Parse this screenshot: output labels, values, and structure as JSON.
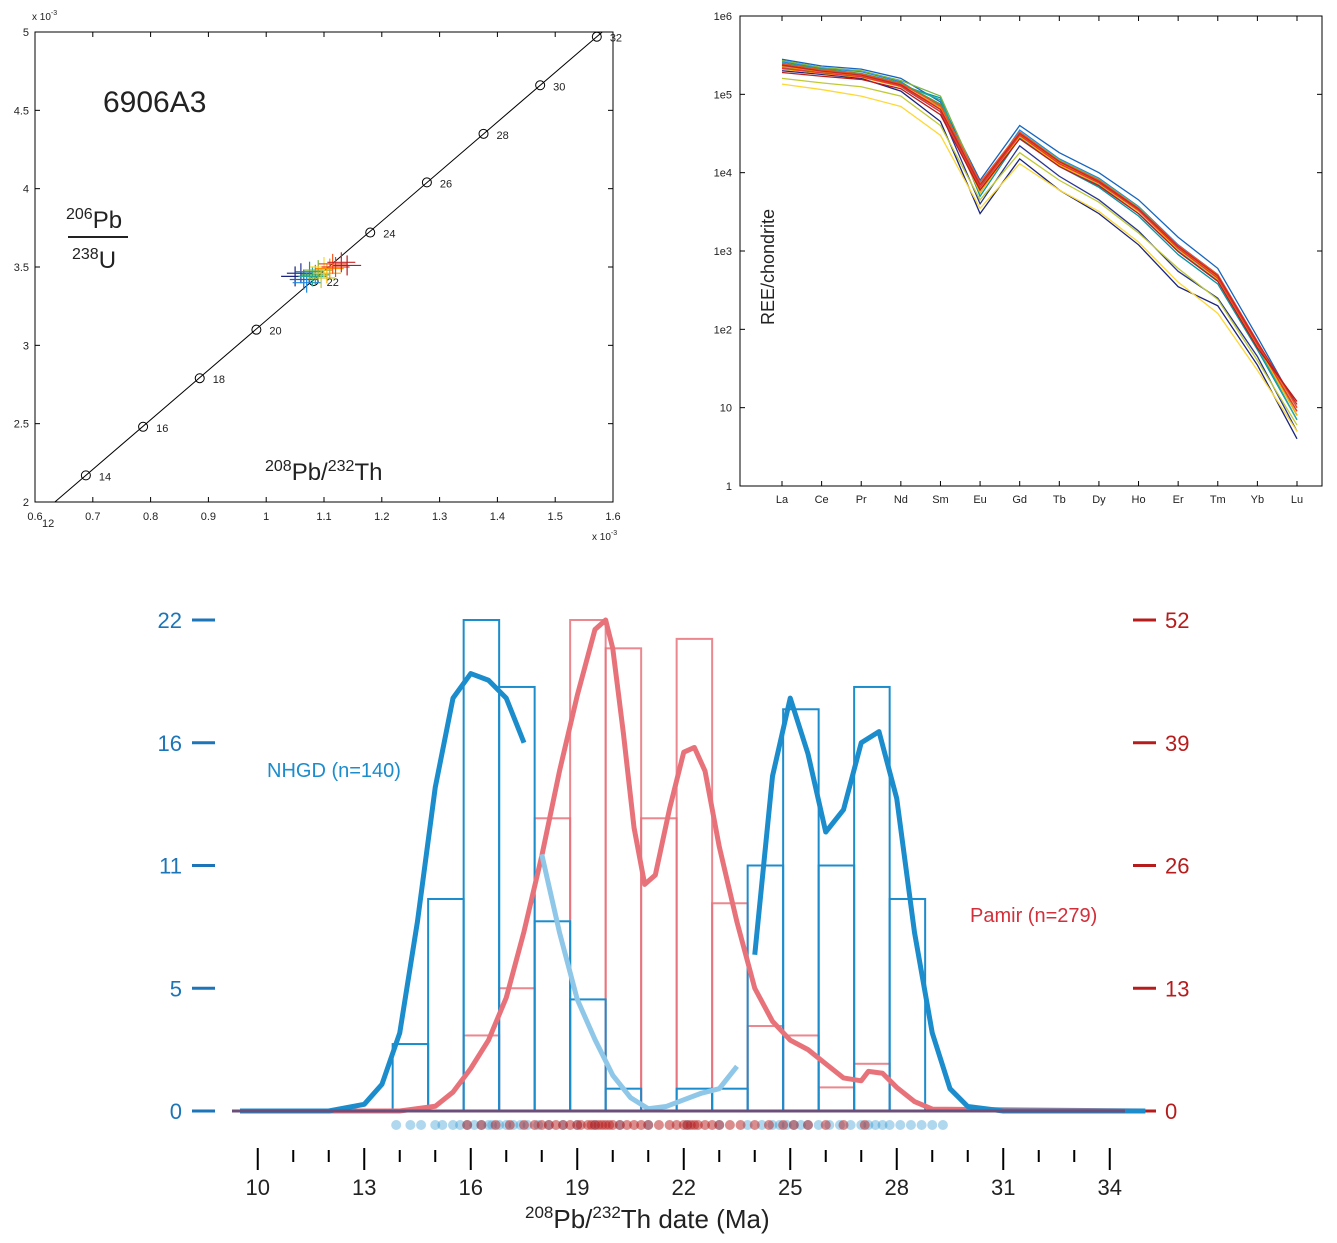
{
  "chart_data": [
    {
      "type": "scatter",
      "panel": "concordia",
      "sample_label": "6906A3",
      "xlabel": {
        "sup1": "208",
        "mid": "Pb/",
        "sup2": "232",
        "end": "Th"
      },
      "ylabel": {
        "num_sup": "206",
        "num": "Pb",
        "den_sup": "238",
        "den": "U"
      },
      "x_scale_label": "x 10",
      "x_scale_exp": "-3",
      "y_scale_label": "x 10",
      "y_scale_exp": "-3",
      "xlim": [
        0.6,
        1.6
      ],
      "ylim": [
        2,
        5
      ],
      "x_ticks": [
        "0.6",
        "0.7",
        "0.8",
        "0.9",
        "1",
        "1.1",
        "1.2",
        "1.3",
        "1.4",
        "1.5",
        "1.6"
      ],
      "y_ticks": [
        "2",
        "2.5",
        "3",
        "3.5",
        "4",
        "4.5",
        "5"
      ],
      "concordia_points": [
        {
          "age": "12",
          "x": 0.59,
          "y": 1.86
        },
        {
          "age": "14",
          "x": 0.688,
          "y": 2.17
        },
        {
          "age": "16",
          "x": 0.787,
          "y": 2.48
        },
        {
          "age": "18",
          "x": 0.885,
          "y": 2.79
        },
        {
          "age": "20",
          "x": 0.983,
          "y": 3.1
        },
        {
          "age": "22",
          "x": 1.082,
          "y": 3.41
        },
        {
          "age": "24",
          "x": 1.18,
          "y": 3.72
        },
        {
          "age": "26",
          "x": 1.278,
          "y": 4.04
        },
        {
          "age": "28",
          "x": 1.376,
          "y": 4.35
        },
        {
          "age": "30",
          "x": 1.474,
          "y": 4.66
        },
        {
          "age": "32",
          "x": 1.572,
          "y": 4.97
        }
      ],
      "analyses": [
        {
          "x": 1.05,
          "y": 3.44,
          "color": "#1a237e"
        },
        {
          "x": 1.06,
          "y": 3.46,
          "color": "#283593"
        },
        {
          "x": 1.065,
          "y": 3.42,
          "color": "#1565c0"
        },
        {
          "x": 1.07,
          "y": 3.4,
          "color": "#1e88e5"
        },
        {
          "x": 1.075,
          "y": 3.47,
          "color": "#0097a7"
        },
        {
          "x": 1.08,
          "y": 3.44,
          "color": "#26a69a"
        },
        {
          "x": 1.085,
          "y": 3.45,
          "color": "#43a047"
        },
        {
          "x": 1.09,
          "y": 3.48,
          "color": "#7cb342"
        },
        {
          "x": 1.095,
          "y": 3.43,
          "color": "#c0ca33"
        },
        {
          "x": 1.1,
          "y": 3.5,
          "color": "#fdd835"
        },
        {
          "x": 1.105,
          "y": 3.46,
          "color": "#ffb300"
        },
        {
          "x": 1.11,
          "y": 3.49,
          "color": "#fb8c00"
        },
        {
          "x": 1.115,
          "y": 3.52,
          "color": "#f4511e"
        },
        {
          "x": 1.12,
          "y": 3.5,
          "color": "#e53935"
        },
        {
          "x": 1.13,
          "y": 3.53,
          "color": "#c62828"
        },
        {
          "x": 1.14,
          "y": 3.51,
          "color": "#b71c1c"
        }
      ]
    },
    {
      "type": "line",
      "panel": "ree",
      "ylabel": "REE/chondrite",
      "y_scale": "log",
      "ylim": [
        1,
        1000000
      ],
      "y_ticks": [
        "1e6",
        "1e5",
        "1e4",
        "1e3",
        "1e2",
        "10",
        "1"
      ],
      "categories": [
        "La",
        "Ce",
        "Pr",
        "Nd",
        "Sm",
        "Eu",
        "Gd",
        "Tb",
        "Dy",
        "Ho",
        "Er",
        "Tm",
        "Yb",
        "Lu"
      ],
      "series": [
        {
          "color": "#1a237e",
          "values": [
            200000,
            180000,
            160000,
            110000,
            45000,
            3000,
            15000,
            6000,
            3000,
            1200,
            350,
            200,
            35,
            4
          ]
        },
        {
          "color": "#283593",
          "values": [
            240000,
            200000,
            175000,
            125000,
            60000,
            4000,
            22000,
            9000,
            4500,
            1800,
            550,
            250,
            45,
            5
          ]
        },
        {
          "color": "#1565c0",
          "values": [
            280000,
            230000,
            210000,
            160000,
            80000,
            8000,
            40000,
            18000,
            10000,
            4500,
            1500,
            600,
            80,
            10
          ]
        },
        {
          "color": "#1e88e5",
          "values": [
            260000,
            215000,
            195000,
            145000,
            70000,
            6500,
            35000,
            15000,
            8500,
            3700,
            1200,
            500,
            70,
            8
          ]
        },
        {
          "color": "#0097a7",
          "values": [
            220000,
            190000,
            170000,
            130000,
            90000,
            5000,
            28000,
            12000,
            6500,
            2800,
            900,
            380,
            55,
            7
          ]
        },
        {
          "color": "#26a69a",
          "values": [
            230000,
            200000,
            180000,
            135000,
            85000,
            5500,
            30000,
            13000,
            7000,
            3000,
            1000,
            420,
            60,
            7
          ]
        },
        {
          "color": "#43a047",
          "values": [
            250000,
            210000,
            185000,
            140000,
            75000,
            6000,
            32000,
            14000,
            7800,
            3400,
            1100,
            460,
            65,
            8
          ]
        },
        {
          "color": "#7cb342",
          "values": [
            270000,
            220000,
            200000,
            150000,
            95000,
            7000,
            33000,
            14500,
            8200,
            3600,
            1150,
            480,
            68,
            9
          ]
        },
        {
          "color": "#c0ca33",
          "values": [
            160000,
            140000,
            125000,
            95000,
            40000,
            4500,
            18000,
            8000,
            4200,
            1700,
            600,
            240,
            40,
            6
          ]
        },
        {
          "color": "#fdd835",
          "values": [
            135000,
            115000,
            95000,
            70000,
            30000,
            3500,
            13000,
            6000,
            3200,
            1300,
            400,
            160,
            30,
            5
          ]
        },
        {
          "color": "#ffb300",
          "values": [
            210000,
            185000,
            165000,
            125000,
            65000,
            5500,
            29000,
            12500,
            7200,
            3200,
            1050,
            440,
            62,
            8
          ]
        },
        {
          "color": "#fb8c00",
          "values": [
            225000,
            195000,
            172000,
            130000,
            68000,
            6000,
            31000,
            13500,
            7600,
            3400,
            1120,
            470,
            66,
            9
          ]
        },
        {
          "color": "#f4511e",
          "values": [
            245000,
            205000,
            182000,
            137000,
            72000,
            7500,
            33000,
            14000,
            8000,
            3500,
            1180,
            500,
            70,
            10
          ]
        },
        {
          "color": "#e53935",
          "values": [
            215000,
            188000,
            168000,
            127000,
            60000,
            6500,
            30000,
            13000,
            7400,
            3300,
            1080,
            450,
            64,
            9
          ]
        },
        {
          "color": "#c62828",
          "values": [
            235000,
            198000,
            176000,
            132000,
            64000,
            7000,
            31500,
            13800,
            7700,
            3450,
            1140,
            480,
            68,
            11
          ]
        },
        {
          "color": "#b71c1c",
          "values": [
            190000,
            170000,
            155000,
            118000,
            55000,
            6000,
            27000,
            12000,
            6800,
            3000,
            980,
            410,
            58,
            12
          ]
        }
      ]
    },
    {
      "type": "bar",
      "panel": "histogram",
      "xlabel": {
        "sup1": "208",
        "mid": "Pb/",
        "sup2": "232",
        "end": "Th date (Ma)"
      },
      "xlim": [
        9.5,
        35
      ],
      "x_ticks": [
        "10",
        "13",
        "16",
        "19",
        "22",
        "25",
        "28",
        "31",
        "34"
      ],
      "left_axis": {
        "ticks": [
          "0",
          "5",
          "11",
          "16",
          "22"
        ],
        "values": [
          0,
          5.5,
          11,
          16.5,
          22
        ],
        "max": 22,
        "color": "#1b75b8"
      },
      "right_axis": {
        "ticks": [
          "0",
          "13",
          "26",
          "39",
          "52"
        ],
        "values": [
          0,
          13,
          26,
          39,
          52
        ],
        "max": 52,
        "color": "#b71c1c"
      },
      "bin_width": 1,
      "series": [
        {
          "name": "NHGD (n=140)",
          "color": "#1b8ccc",
          "bin_starts": [
            13.8,
            14.8,
            15.8,
            16.8,
            17.8,
            18.8,
            19.8,
            20.8,
            21.8,
            22.8,
            23.8,
            24.8,
            25.8,
            26.8,
            27.8
          ],
          "counts": [
            3,
            9.5,
            22,
            19,
            8.5,
            5,
            1,
            0,
            1,
            1,
            11,
            18,
            11,
            19,
            9.5
          ],
          "kde_x": [
            9.5,
            12,
            13,
            13.5,
            14,
            14.5,
            15,
            15.5,
            16,
            16.5,
            17,
            17.5,
            18,
            18.5,
            19,
            19.5,
            20,
            20.5,
            21,
            21.5,
            22,
            22.5,
            23,
            23.5,
            24,
            24.5,
            25,
            25.5,
            26,
            26.5,
            27,
            27.5,
            28,
            28.5,
            29,
            29.5,
            30,
            31,
            35
          ],
          "kde_y": [
            0,
            0,
            0.3,
            1.2,
            3.5,
            8.5,
            14.5,
            18.5,
            19.6,
            19.3,
            18.5,
            16.5,
            11.5,
            8.0,
            5.0,
            3.2,
            1.6,
            0.6,
            0.1,
            0.2,
            0.5,
            0.8,
            1.0,
            2.0,
            7.0,
            15.0,
            18.5,
            16.0,
            12.5,
            13.5,
            16.5,
            17.0,
            14.0,
            8.0,
            3.5,
            1.0,
            0.2,
            0,
            0
          ],
          "kde_light_range": [
            17.8,
            23.8
          ]
        },
        {
          "name": "Pamir (n=279)",
          "color": "#e8727a",
          "bin_starts": [
            15.8,
            16.8,
            17.8,
            18.8,
            19.8,
            20.8,
            21.8,
            22.8,
            23.8,
            24.8,
            25.8,
            26.8
          ],
          "counts": [
            8,
            13,
            31,
            52,
            49,
            31,
            50,
            22,
            9,
            8,
            2.5,
            5
          ],
          "kde_x": [
            9.5,
            14,
            15,
            15.5,
            16,
            16.5,
            17,
            17.5,
            18,
            18.5,
            19,
            19.5,
            19.8,
            20,
            20.3,
            20.6,
            20.9,
            21.2,
            21.6,
            22,
            22.3,
            22.6,
            23,
            23.5,
            24,
            24.5,
            25,
            25.5,
            26,
            26.5,
            27,
            27.2,
            27.6,
            28,
            28.5,
            29,
            35
          ],
          "kde_y": [
            0,
            0,
            0.5,
            2,
            4.5,
            7.5,
            12,
            19,
            27,
            36,
            44,
            51,
            52,
            49,
            40,
            30,
            24,
            25,
            32,
            38,
            38.5,
            36,
            28,
            20,
            13,
            9.5,
            7.5,
            6.5,
            5.0,
            3.5,
            3.2,
            4.2,
            4.0,
            2.5,
            1.0,
            0.2,
            0
          ]
        }
      ],
      "rug_nhgd": [
        13.9,
        14.3,
        14.6,
        15.0,
        15.2,
        15.5,
        15.7,
        15.9,
        16.1,
        16.3,
        16.5,
        16.6,
        16.8,
        17.0,
        17.2,
        17.4,
        17.6,
        17.9,
        18.2,
        18.6,
        19.0,
        19.5,
        20.2,
        21.0,
        22.1,
        23.0,
        23.8,
        24.2,
        24.5,
        24.7,
        24.9,
        25.1,
        25.3,
        25.5,
        25.8,
        26.1,
        26.4,
        26.7,
        27.0,
        27.2,
        27.4,
        27.6,
        27.8,
        28.1,
        28.4,
        28.7,
        29.0,
        29.3
      ],
      "rug_pamir": [
        15.9,
        16.3,
        16.7,
        17.1,
        17.5,
        17.8,
        18.0,
        18.2,
        18.4,
        18.6,
        18.8,
        19.0,
        19.1,
        19.3,
        19.4,
        19.5,
        19.6,
        19.7,
        19.8,
        19.9,
        20.0,
        20.2,
        20.4,
        20.6,
        20.8,
        21.0,
        21.3,
        21.6,
        21.8,
        22.0,
        22.1,
        22.2,
        22.3,
        22.4,
        22.6,
        22.8,
        23.0,
        23.3,
        23.6,
        24.0,
        24.4,
        24.8,
        25.1,
        25.5,
        26.0,
        26.5,
        27.1
      ]
    }
  ]
}
